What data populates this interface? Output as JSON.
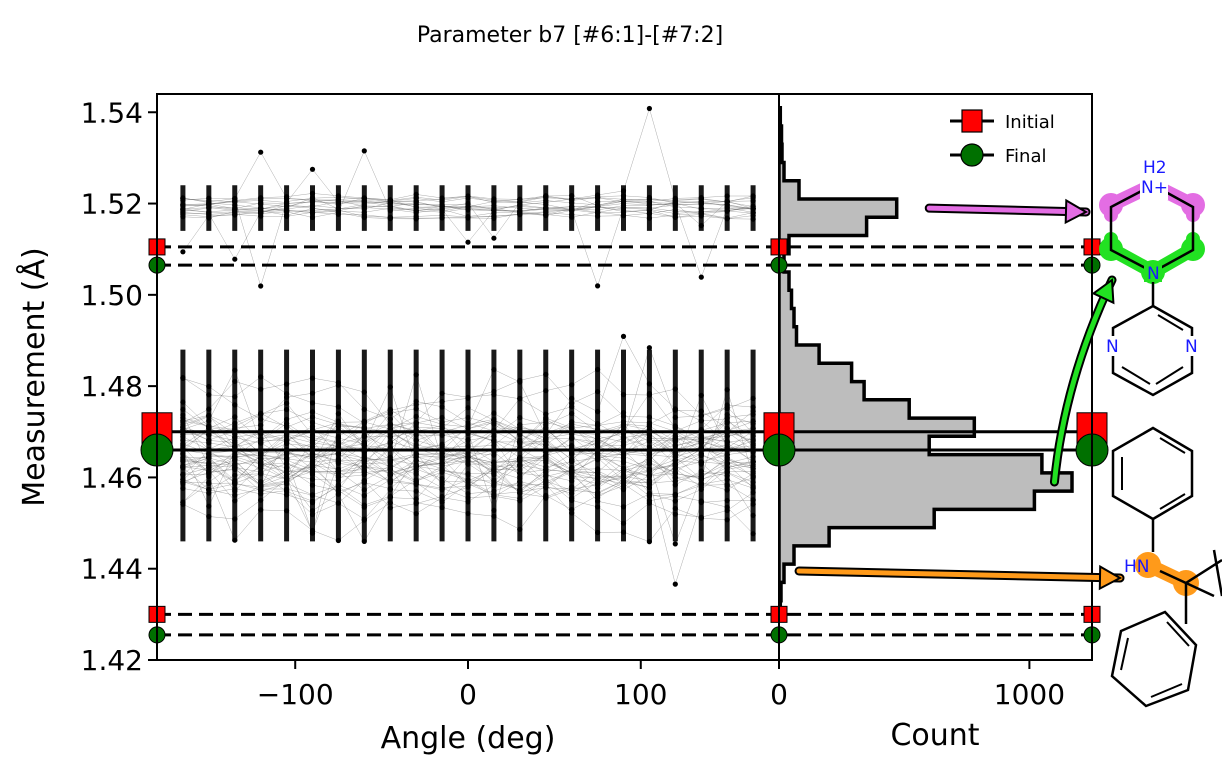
{
  "chart_data": {
    "type": "scatter",
    "title": "Parameter b7 [#6:1]-[#7:2]",
    "colors": {
      "initial": "#ff0000",
      "final": "#007000",
      "hist_fill": "#bdbdbd",
      "piperazine_ring": "#e36de3",
      "piperazine_n": "#22e122",
      "amine_c": "#ff9a1a"
    },
    "main_panel": {
      "xlabel": "Angle (deg)",
      "ylabel": "Measurement (Å)",
      "xlim": [
        -180,
        180
      ],
      "ylim": [
        1.42,
        1.544
      ],
      "xticks": [
        -100,
        0,
        100
      ],
      "xtick_labels": [
        "−100",
        "0",
        "100"
      ],
      "yticks": [
        1.42,
        1.44,
        1.46,
        1.48,
        1.5,
        1.52,
        1.54
      ],
      "ytick_labels": [
        "1.42",
        "1.44",
        "1.46",
        "1.48",
        "1.50",
        "1.52",
        "1.54"
      ],
      "scan_angles": [
        -165,
        -150,
        -135,
        -120,
        -105,
        -90,
        -75,
        -60,
        -45,
        -30,
        -15,
        0,
        15,
        30,
        45,
        60,
        75,
        90,
        105,
        120,
        135,
        150,
        165
      ],
      "clusters": [
        {
          "label": "upper",
          "y_min": 1.514,
          "y_max": 1.524
        },
        {
          "label": "lower",
          "y_min": 1.442,
          "y_max": 1.488
        }
      ]
    },
    "hist_panel": {
      "xlabel": "Count",
      "xlim": [
        0,
        1250
      ],
      "xticks": [
        0,
        1000
      ],
      "xtick_labels": [
        "0",
        "1000"
      ],
      "bins": [
        {
          "y": 1.539,
          "count": 5
        },
        {
          "y": 1.535,
          "count": 10
        },
        {
          "y": 1.531,
          "count": 12
        },
        {
          "y": 1.527,
          "count": 20
        },
        {
          "y": 1.523,
          "count": 80
        },
        {
          "y": 1.519,
          "count": 470
        },
        {
          "y": 1.515,
          "count": 350
        },
        {
          "y": 1.511,
          "count": 40
        },
        {
          "y": 1.507,
          "count": 20
        },
        {
          "y": 1.503,
          "count": 40
        },
        {
          "y": 1.499,
          "count": 50
        },
        {
          "y": 1.495,
          "count": 60
        },
        {
          "y": 1.491,
          "count": 70
        },
        {
          "y": 1.487,
          "count": 160
        },
        {
          "y": 1.483,
          "count": 290
        },
        {
          "y": 1.479,
          "count": 340
        },
        {
          "y": 1.475,
          "count": 520
        },
        {
          "y": 1.471,
          "count": 780
        },
        {
          "y": 1.467,
          "count": 600
        },
        {
          "y": 1.463,
          "count": 1050
        },
        {
          "y": 1.459,
          "count": 1170
        },
        {
          "y": 1.455,
          "count": 1020
        },
        {
          "y": 1.451,
          "count": 620
        },
        {
          "y": 1.447,
          "count": 200
        },
        {
          "y": 1.443,
          "count": 60
        },
        {
          "y": 1.439,
          "count": 20
        },
        {
          "y": 1.435,
          "count": 8
        },
        {
          "y": 1.431,
          "count": 5
        }
      ],
      "bin_width": 0.004
    },
    "reference_lines": [
      {
        "name": "Initial",
        "y": 1.5105,
        "style": "dashed",
        "marker": "square"
      },
      {
        "name": "Final",
        "y": 1.5065,
        "style": "dashed",
        "marker": "circle"
      },
      {
        "name": "Initial",
        "y": 1.47,
        "style": "solid",
        "marker": "square"
      },
      {
        "name": "Final",
        "y": 1.466,
        "style": "solid",
        "marker": "circle"
      },
      {
        "name": "Initial",
        "y": 1.43,
        "style": "dashed",
        "marker": "square"
      },
      {
        "name": "Final",
        "y": 1.4255,
        "style": "dashed",
        "marker": "circle"
      }
    ],
    "legend": {
      "placement": "top-right",
      "entries": [
        {
          "name": "Initial",
          "marker": "square",
          "color": "#ff0000"
        },
        {
          "name": "Final",
          "marker": "circle",
          "color": "#007000"
        }
      ]
    },
    "annotations": [
      {
        "type": "arrow",
        "from_count": 600,
        "from_y": 1.519,
        "color": "#e36de3",
        "target": "piperazine-NH2+"
      },
      {
        "type": "arrow",
        "from_count": 1100,
        "from_y": 1.459,
        "color": "#22e122",
        "target": "piperazine-N"
      },
      {
        "type": "arrow",
        "from_count": 80,
        "from_y": 1.4395,
        "color": "#ff9a1a",
        "target": "amine-HN"
      }
    ],
    "molecule_labels": {
      "h2": "H2",
      "nplus": "N+",
      "n_pip": "N",
      "n_pyr_left": "N",
      "n_pyr_right": "N",
      "hn": "HN"
    }
  }
}
